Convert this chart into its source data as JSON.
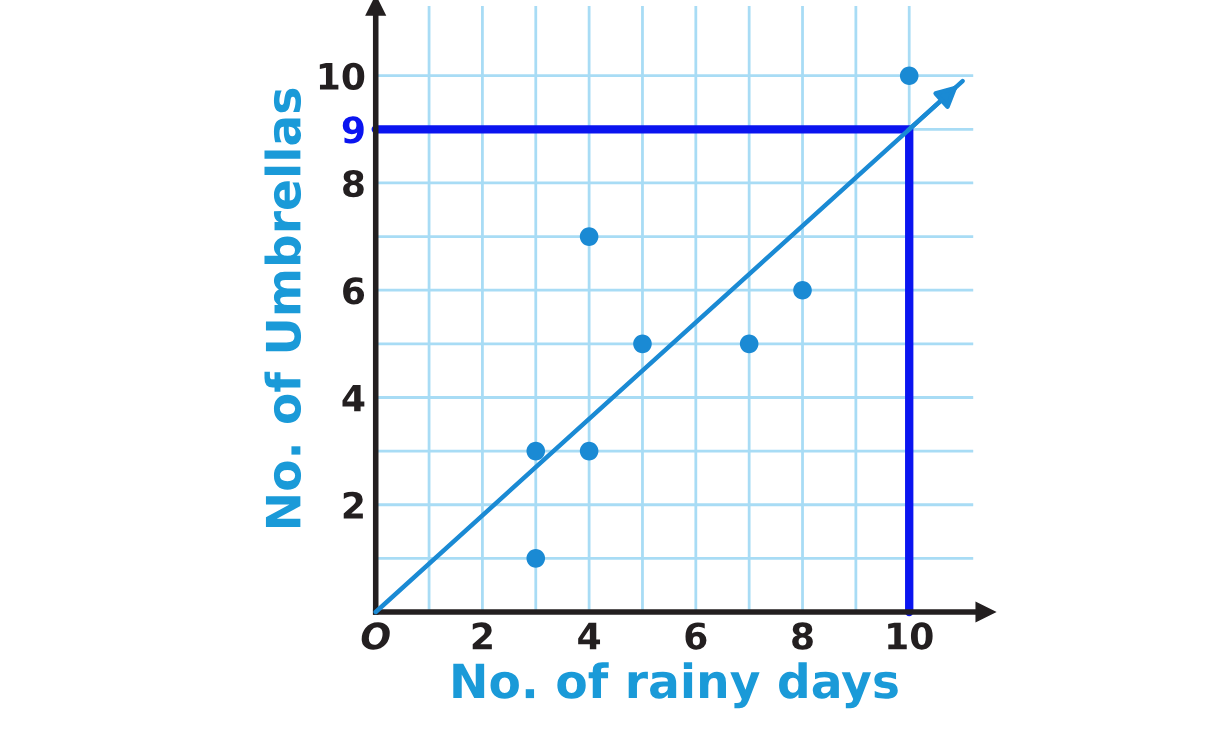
{
  "chart_data": {
    "type": "scatter",
    "xlabel": "No. of rainy days",
    "ylabel": "No. of Umbrellas",
    "series": [
      {
        "color": "#1a8ad4",
        "x": [
          3,
          3,
          4,
          4,
          5,
          7,
          8,
          10
        ],
        "values": [
          3,
          1,
          3,
          7,
          5,
          5,
          6,
          10
        ]
      },
      {
        "type": "line",
        "marker": "none",
        "color": "#1a8ad4",
        "x": [
          0,
          11
        ],
        "values": [
          0,
          9.9
        ]
      },
      {
        "type": "line",
        "marker": "none",
        "color": "#0a14f0",
        "x": [
          0,
          10,
          10
        ],
        "values": [
          9,
          9,
          0
        ]
      }
    ],
    "xlim": [
      0,
      11.2
    ],
    "ylim": [
      0,
      11.3
    ],
    "xticks": [
      {
        "value": 0,
        "label": "O"
      },
      {
        "value": 1,
        "label": null
      },
      2,
      {
        "value": 3,
        "label": null
      },
      4,
      {
        "value": 5,
        "label": null
      },
      6,
      {
        "value": 7,
        "label": null
      },
      8,
      {
        "value": 9,
        "label": null
      },
      10
    ],
    "yticks": [
      {
        "value": 1,
        "label": null
      },
      2,
      {
        "value": 3,
        "label": null
      },
      4,
      {
        "value": 5,
        "label": null
      },
      6,
      {
        "value": 7,
        "label": null
      },
      8,
      9,
      10
    ],
    "grid": true,
    "marker": "circle",
    "legend": false
  }
}
